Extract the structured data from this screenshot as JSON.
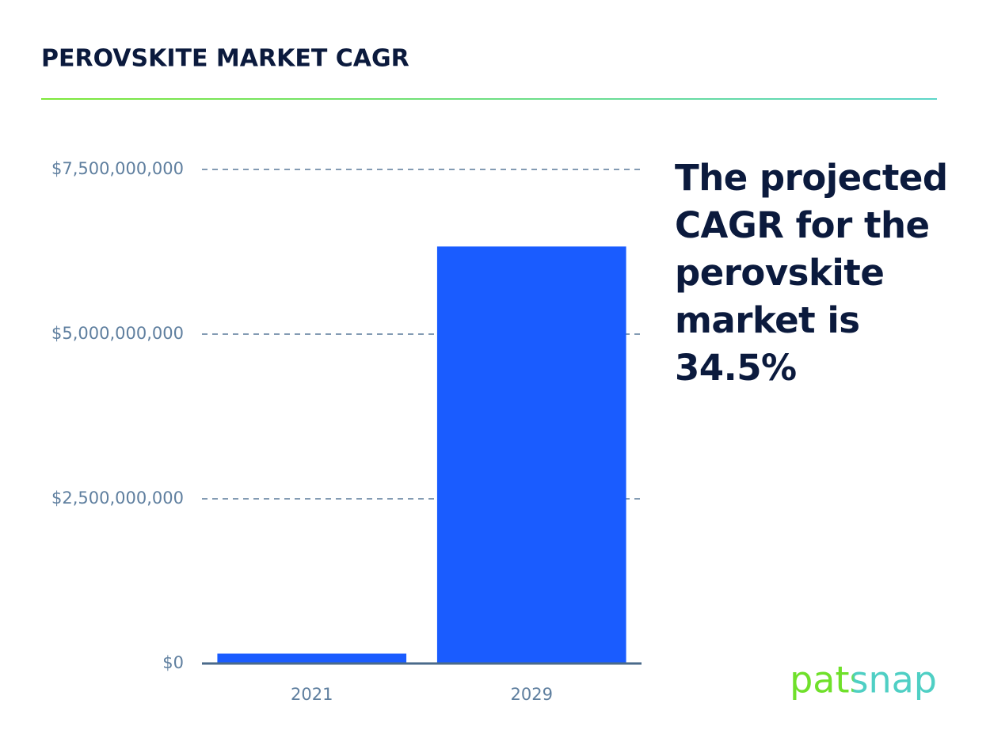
{
  "chart_data": {
    "type": "bar",
    "title": "PEROVSKITE MARKET CAGR",
    "categories": [
      "2021",
      "2029"
    ],
    "values": [
      150000000,
      6330000000
    ],
    "color": "#1a5cff",
    "ylim": [
      0,
      7500000000
    ],
    "yticks": [
      {
        "value": 0,
        "label": "$0"
      },
      {
        "value": 2500000000,
        "label": "$2,500,000,000"
      },
      {
        "value": 5000000000,
        "label": "$5,000,000,000"
      },
      {
        "value": 7500000000,
        "label": "$7,500,000,000"
      }
    ],
    "grid": true,
    "annotation": "The projected CAGR for the perovskite market is 34.5%",
    "logo": "patsnap"
  }
}
